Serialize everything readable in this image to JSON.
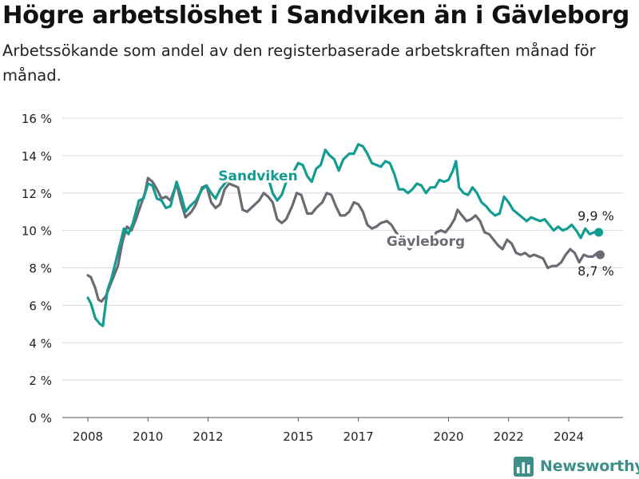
{
  "title": "Högre arbetslöshet i Sandviken än i Gävleborg",
  "subtitle": "Arbetssökande som andel av den registerbaserade arbetskraften månad för månad.",
  "brand": {
    "name": "Newsworthy",
    "icon": "bar-chart-logo-icon"
  },
  "colors": {
    "sandviken": "#139c91",
    "gavleborg": "#6b6b73",
    "grid": "#dcdcdc",
    "text": "#222222"
  },
  "chart_data": {
    "type": "line",
    "ylim": [
      0,
      16
    ],
    "y_ticks": [
      0,
      2,
      4,
      6,
      8,
      10,
      12,
      14,
      16
    ],
    "y_tick_labels": [
      "0 %",
      "2 %",
      "4 %",
      "6 %",
      "8 %",
      "10 %",
      "12 %",
      "14 %",
      "16 %"
    ],
    "xlim": [
      2007.5,
      2025.6
    ],
    "x_ticks": [
      2008,
      2010,
      2012,
      2015,
      2017,
      2020,
      2022,
      2024
    ],
    "x_tick_labels": [
      "2008",
      "2010",
      "2012",
      "2015",
      "2017",
      "2020",
      "2022",
      "2024"
    ],
    "grid": true,
    "series": [
      {
        "name": "Sandviken",
        "end_label": "9,9 %",
        "points": [
          [
            2008.0,
            6.4
          ],
          [
            2008.1,
            6.1
          ],
          [
            2008.25,
            5.3
          ],
          [
            2008.4,
            5.0
          ],
          [
            2008.5,
            4.9
          ],
          [
            2008.65,
            6.8
          ],
          [
            2008.8,
            7.5
          ],
          [
            2009.0,
            8.8
          ],
          [
            2009.2,
            10.1
          ],
          [
            2009.35,
            9.8
          ],
          [
            2009.5,
            10.4
          ],
          [
            2009.7,
            11.6
          ],
          [
            2009.85,
            11.7
          ],
          [
            2010.0,
            12.5
          ],
          [
            2010.15,
            12.4
          ],
          [
            2010.3,
            11.7
          ],
          [
            2010.45,
            11.6
          ],
          [
            2010.6,
            11.2
          ],
          [
            2010.75,
            11.3
          ],
          [
            2010.95,
            12.6
          ],
          [
            2011.1,
            11.9
          ],
          [
            2011.25,
            11.0
          ],
          [
            2011.4,
            11.3
          ],
          [
            2011.6,
            11.6
          ],
          [
            2011.8,
            12.2
          ],
          [
            2011.95,
            12.4
          ],
          [
            2012.1,
            12.0
          ],
          [
            2012.25,
            11.7
          ],
          [
            2012.4,
            12.2
          ],
          [
            2012.6,
            12.6
          ],
          [
            2012.8,
            12.8
          ],
          [
            2013.0,
            13.0
          ],
          [
            2013.2,
            12.6
          ],
          [
            2013.4,
            12.7
          ],
          [
            2013.6,
            12.8
          ],
          [
            2013.8,
            12.9
          ],
          [
            2014.0,
            12.8
          ],
          [
            2014.15,
            12.0
          ],
          [
            2014.3,
            11.6
          ],
          [
            2014.45,
            11.9
          ],
          [
            2014.6,
            12.6
          ],
          [
            2014.8,
            13.0
          ],
          [
            2015.0,
            13.6
          ],
          [
            2015.15,
            13.5
          ],
          [
            2015.3,
            12.9
          ],
          [
            2015.45,
            12.6
          ],
          [
            2015.6,
            13.3
          ],
          [
            2015.75,
            13.5
          ],
          [
            2015.9,
            14.3
          ],
          [
            2016.05,
            14.0
          ],
          [
            2016.2,
            13.8
          ],
          [
            2016.35,
            13.2
          ],
          [
            2016.5,
            13.8
          ],
          [
            2016.7,
            14.1
          ],
          [
            2016.85,
            14.1
          ],
          [
            2017.0,
            14.6
          ],
          [
            2017.15,
            14.5
          ],
          [
            2017.3,
            14.1
          ],
          [
            2017.45,
            13.6
          ],
          [
            2017.6,
            13.5
          ],
          [
            2017.75,
            13.4
          ],
          [
            2017.9,
            13.7
          ],
          [
            2018.05,
            13.6
          ],
          [
            2018.2,
            13.0
          ],
          [
            2018.35,
            12.2
          ],
          [
            2018.5,
            12.2
          ],
          [
            2018.65,
            12.0
          ],
          [
            2018.8,
            12.2
          ],
          [
            2018.95,
            12.5
          ],
          [
            2019.1,
            12.4
          ],
          [
            2019.25,
            12.0
          ],
          [
            2019.4,
            12.3
          ],
          [
            2019.55,
            12.3
          ],
          [
            2019.7,
            12.7
          ],
          [
            2019.85,
            12.6
          ],
          [
            2020.0,
            12.7
          ],
          [
            2020.15,
            13.2
          ],
          [
            2020.25,
            13.7
          ],
          [
            2020.35,
            12.3
          ],
          [
            2020.5,
            12.0
          ],
          [
            2020.65,
            11.9
          ],
          [
            2020.8,
            12.3
          ],
          [
            2020.95,
            12.0
          ],
          [
            2021.1,
            11.5
          ],
          [
            2021.25,
            11.3
          ],
          [
            2021.4,
            11.0
          ],
          [
            2021.55,
            10.8
          ],
          [
            2021.7,
            10.9
          ],
          [
            2021.85,
            11.8
          ],
          [
            2022.0,
            11.5
          ],
          [
            2022.15,
            11.1
          ],
          [
            2022.3,
            10.9
          ],
          [
            2022.45,
            10.7
          ],
          [
            2022.6,
            10.5
          ],
          [
            2022.75,
            10.7
          ],
          [
            2022.9,
            10.6
          ],
          [
            2023.05,
            10.5
          ],
          [
            2023.2,
            10.6
          ],
          [
            2023.35,
            10.3
          ],
          [
            2023.5,
            10.0
          ],
          [
            2023.65,
            10.2
          ],
          [
            2023.8,
            10.0
          ],
          [
            2023.95,
            10.1
          ],
          [
            2024.1,
            10.3
          ],
          [
            2024.25,
            10.0
          ],
          [
            2024.4,
            9.6
          ],
          [
            2024.55,
            10.1
          ],
          [
            2024.7,
            9.8
          ],
          [
            2024.85,
            9.9
          ],
          [
            2025.0,
            9.9
          ]
        ]
      },
      {
        "name": "Gävleborg",
        "end_label": "8,7 %",
        "points": [
          [
            2008.0,
            7.6
          ],
          [
            2008.1,
            7.5
          ],
          [
            2008.25,
            6.9
          ],
          [
            2008.35,
            6.3
          ],
          [
            2008.45,
            6.2
          ],
          [
            2008.6,
            6.5
          ],
          [
            2008.8,
            7.3
          ],
          [
            2009.0,
            8.1
          ],
          [
            2009.15,
            9.4
          ],
          [
            2009.3,
            10.2
          ],
          [
            2009.45,
            10.0
          ],
          [
            2009.6,
            10.6
          ],
          [
            2009.75,
            11.3
          ],
          [
            2009.9,
            12.0
          ],
          [
            2010.0,
            12.8
          ],
          [
            2010.15,
            12.6
          ],
          [
            2010.3,
            12.2
          ],
          [
            2010.45,
            11.7
          ],
          [
            2010.6,
            11.8
          ],
          [
            2010.75,
            11.6
          ],
          [
            2010.95,
            12.5
          ],
          [
            2011.1,
            11.5
          ],
          [
            2011.25,
            10.7
          ],
          [
            2011.45,
            11.0
          ],
          [
            2011.6,
            11.4
          ],
          [
            2011.8,
            12.3
          ],
          [
            2011.95,
            12.4
          ],
          [
            2012.1,
            11.5
          ],
          [
            2012.25,
            11.2
          ],
          [
            2012.4,
            11.4
          ],
          [
            2012.55,
            12.2
          ],
          [
            2012.7,
            12.5
          ],
          [
            2012.85,
            12.4
          ],
          [
            2013.0,
            12.3
          ],
          [
            2013.15,
            11.1
          ],
          [
            2013.3,
            11.0
          ],
          [
            2013.5,
            11.3
          ],
          [
            2013.7,
            11.6
          ],
          [
            2013.85,
            12.0
          ],
          [
            2014.0,
            11.8
          ],
          [
            2014.15,
            11.5
          ],
          [
            2014.3,
            10.6
          ],
          [
            2014.45,
            10.4
          ],
          [
            2014.6,
            10.6
          ],
          [
            2014.8,
            11.3
          ],
          [
            2014.95,
            12.0
          ],
          [
            2015.1,
            11.9
          ],
          [
            2015.3,
            10.9
          ],
          [
            2015.45,
            10.9
          ],
          [
            2015.6,
            11.2
          ],
          [
            2015.8,
            11.5
          ],
          [
            2015.95,
            12.0
          ],
          [
            2016.1,
            11.9
          ],
          [
            2016.25,
            11.3
          ],
          [
            2016.4,
            10.8
          ],
          [
            2016.55,
            10.8
          ],
          [
            2016.7,
            11.0
          ],
          [
            2016.85,
            11.5
          ],
          [
            2017.0,
            11.4
          ],
          [
            2017.15,
            11.0
          ],
          [
            2017.3,
            10.3
          ],
          [
            2017.45,
            10.1
          ],
          [
            2017.6,
            10.2
          ],
          [
            2017.75,
            10.4
          ],
          [
            2017.95,
            10.5
          ],
          [
            2018.1,
            10.3
          ],
          [
            2018.25,
            9.9
          ],
          [
            2018.4,
            9.6
          ],
          [
            2018.55,
            9.3
          ],
          [
            2018.7,
            9.0
          ],
          [
            2018.85,
            9.2
          ],
          [
            2019.0,
            9.5
          ],
          [
            2019.15,
            9.2
          ],
          [
            2019.3,
            9.2
          ],
          [
            2019.45,
            9.6
          ],
          [
            2019.6,
            9.9
          ],
          [
            2019.75,
            10.0
          ],
          [
            2019.9,
            9.9
          ],
          [
            2020.05,
            10.2
          ],
          [
            2020.2,
            10.6
          ],
          [
            2020.3,
            11.1
          ],
          [
            2020.45,
            10.8
          ],
          [
            2020.6,
            10.5
          ],
          [
            2020.75,
            10.6
          ],
          [
            2020.9,
            10.8
          ],
          [
            2021.05,
            10.5
          ],
          [
            2021.2,
            9.9
          ],
          [
            2021.35,
            9.8
          ],
          [
            2021.5,
            9.5
          ],
          [
            2021.65,
            9.2
          ],
          [
            2021.8,
            9.0
          ],
          [
            2021.95,
            9.5
          ],
          [
            2022.1,
            9.3
          ],
          [
            2022.25,
            8.8
          ],
          [
            2022.4,
            8.7
          ],
          [
            2022.55,
            8.8
          ],
          [
            2022.7,
            8.6
          ],
          [
            2022.85,
            8.7
          ],
          [
            2023.0,
            8.6
          ],
          [
            2023.15,
            8.5
          ],
          [
            2023.3,
            8.0
          ],
          [
            2023.45,
            8.1
          ],
          [
            2023.6,
            8.1
          ],
          [
            2023.75,
            8.3
          ],
          [
            2023.9,
            8.7
          ],
          [
            2024.05,
            9.0
          ],
          [
            2024.2,
            8.8
          ],
          [
            2024.35,
            8.3
          ],
          [
            2024.5,
            8.7
          ],
          [
            2024.65,
            8.6
          ],
          [
            2024.8,
            8.6
          ],
          [
            2024.95,
            8.8
          ],
          [
            2025.05,
            8.7
          ]
        ]
      }
    ]
  }
}
